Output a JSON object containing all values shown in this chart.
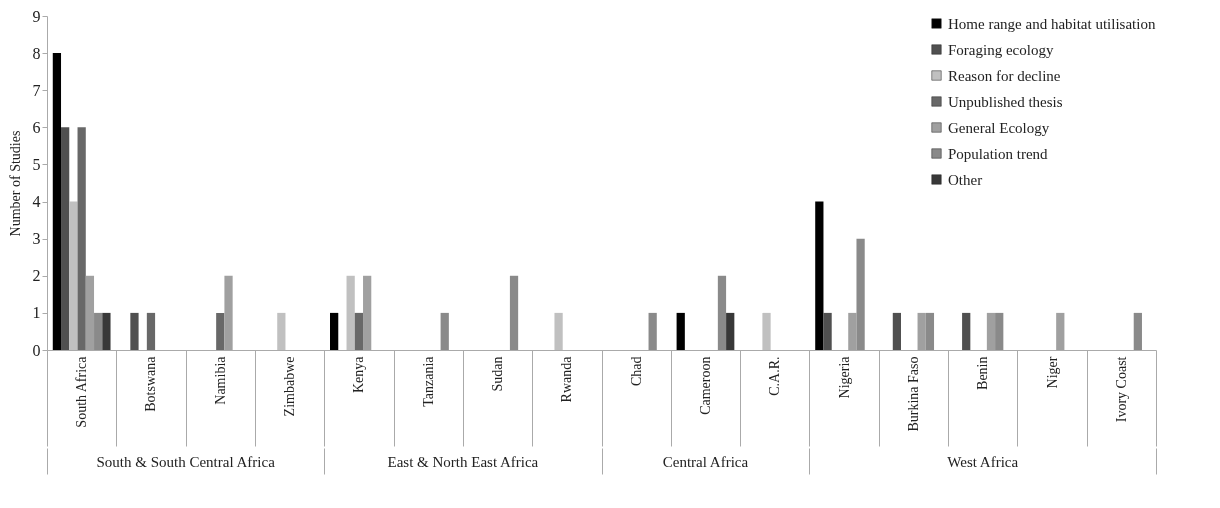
{
  "chart_data": {
    "type": "bar",
    "ylabel": "Number of Studies",
    "categories": [
      "South Africa",
      "Botswana",
      "Namibia",
      "Zimbabwe",
      "Kenya",
      "Tanzania",
      "Sudan",
      "Rwanda",
      "Chad",
      "Cameroon",
      "C.A.R.",
      "Nigeria",
      "Burkina Faso",
      "Benin",
      "Niger",
      "Ivory Coast"
    ],
    "series": [
      {
        "name": "Home range and habitat utilisation",
        "color": "#000000",
        "values": [
          8,
          0,
          0,
          0,
          1,
          0,
          0,
          0,
          0,
          1,
          0,
          4,
          0,
          0,
          0,
          0
        ]
      },
      {
        "name": "Foraging ecology",
        "color": "#505050",
        "values": [
          6,
          1,
          0,
          0,
          0,
          0,
          0,
          0,
          0,
          0,
          0,
          1,
          1,
          1,
          0,
          0
        ]
      },
      {
        "name": "Reason for decline",
        "color": "#c0c0c0",
        "values": [
          4,
          0,
          0,
          1,
          2,
          0,
          0,
          1,
          0,
          0,
          1,
          0,
          0,
          0,
          0,
          0
        ]
      },
      {
        "name": "Unpublished thesis",
        "color": "#686868",
        "values": [
          6,
          1,
          1,
          0,
          1,
          0,
          0,
          0,
          0,
          0,
          0,
          0,
          0,
          0,
          0,
          0
        ]
      },
      {
        "name": "General Ecology",
        "color": "#a0a0a0",
        "values": [
          2,
          0,
          2,
          0,
          2,
          0,
          0,
          0,
          0,
          0,
          0,
          1,
          1,
          1,
          1,
          0
        ]
      },
      {
        "name": "Population trend",
        "color": "#8a8a8a",
        "values": [
          1,
          0,
          0,
          0,
          0,
          1,
          2,
          0,
          1,
          2,
          0,
          3,
          1,
          1,
          0,
          1
        ]
      },
      {
        "name": "Other",
        "color": "#383838",
        "values": [
          1,
          0,
          0,
          0,
          0,
          0,
          0,
          0,
          0,
          1,
          0,
          0,
          0,
          0,
          0,
          0
        ]
      }
    ],
    "ylim": [
      0,
      9
    ],
    "yticks": [
      0,
      1,
      2,
      3,
      4,
      5,
      6,
      7,
      8,
      9
    ],
    "grid": false,
    "legend": "top right",
    "annotations": [
      "South & South Central Africa",
      "East & North East Africa",
      "Central Africa",
      "West Africa"
    ]
  }
}
